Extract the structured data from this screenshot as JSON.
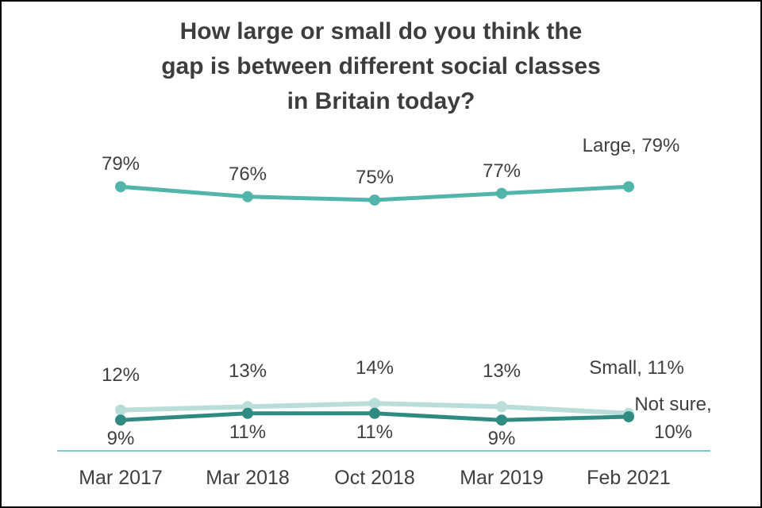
{
  "title": {
    "lines": [
      "How large or small do you think the",
      "gap is between different social classes",
      "in Britain today?"
    ]
  },
  "colors": {
    "large": "#52b5ab",
    "small": "#b9ddd8",
    "not_sure": "#2f8b82",
    "axis": "#7fccc4",
    "text": "#404040",
    "title": "#3d3d3d",
    "border": "#000000",
    "background": "#ffffff"
  },
  "chart_data": {
    "type": "line",
    "title": "How large or small do you think the gap is between different social classes in Britain today?",
    "categories": [
      "Mar 2017",
      "Mar 2018",
      "Oct 2018",
      "Mar 2019",
      "Feb 2021"
    ],
    "series": [
      {
        "name": "Large",
        "values": [
          79,
          76,
          75,
          77,
          79
        ],
        "color_key": "large",
        "label_position": "above",
        "point_labels": [
          "79%",
          "76%",
          "75%",
          "77%"
        ],
        "end_label_lines": [
          "Large, 79%"
        ]
      },
      {
        "name": "Small",
        "values": [
          12,
          13,
          14,
          13,
          11
        ],
        "color_key": "small",
        "label_position": "above",
        "point_labels": [
          "12%",
          "13%",
          "14%",
          "13%"
        ],
        "end_label_lines": [
          "Small, 11%"
        ]
      },
      {
        "name": "Not sure",
        "values": [
          9,
          11,
          11,
          9,
          10
        ],
        "color_key": "not_sure",
        "label_position": "below",
        "point_labels": [
          "9%",
          "11%",
          "11%",
          "9%"
        ],
        "end_label_lines": [
          "Not sure,",
          "10%"
        ]
      }
    ],
    "xlabel": "",
    "ylabel": "",
    "ylim": [
      0,
      100
    ],
    "grid": false,
    "legend": "end-of-line labels",
    "unit": "%"
  }
}
